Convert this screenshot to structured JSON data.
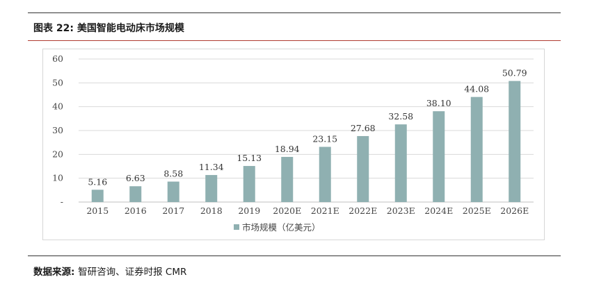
{
  "header": {
    "title": "图表 22:  美国智能电动床市场规模"
  },
  "footer": {
    "source_label": "数据来源: ",
    "source_text": "智研咨询、证券时报 CMR"
  },
  "colors": {
    "bar": "#8fb0b1",
    "title_rule": "#b03a30",
    "grid": "#d9d9d9"
  },
  "chart_data": {
    "type": "bar",
    "title": "",
    "xlabel": "",
    "ylabel": "",
    "ylim": [
      0,
      60
    ],
    "yticks": [
      "-",
      "10",
      "20",
      "30",
      "40",
      "50",
      "60"
    ],
    "categories": [
      "2015",
      "2016",
      "2017",
      "2018",
      "2019",
      "2020E",
      "2021E",
      "2022E",
      "2023E",
      "2024E",
      "2025E",
      "2026E"
    ],
    "series": [
      {
        "name": "市场规模（亿美元）",
        "values": [
          5.16,
          6.63,
          8.58,
          11.34,
          15.13,
          18.94,
          23.15,
          27.68,
          32.58,
          38.1,
          44.08,
          50.79
        ],
        "labels": [
          "5.16",
          "6.63",
          "8.58",
          "11.34",
          "15.13",
          "18.94",
          "23.15",
          "27.68",
          "32.58",
          "38.10",
          "44.08",
          "50.79"
        ]
      }
    ],
    "grid": true,
    "legend_position": "bottom-center"
  }
}
